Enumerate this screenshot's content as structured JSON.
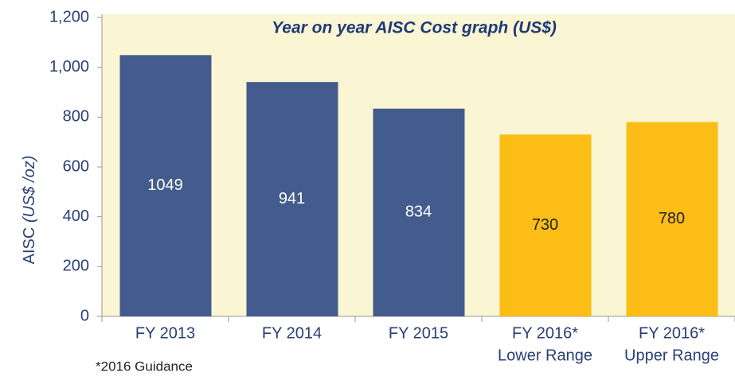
{
  "chart_data": {
    "type": "bar",
    "title": "Year on year AISC Cost graph (US$)",
    "y_label": {
      "text": "AISC",
      "unit": "(US$ /oz)"
    },
    "categories": [
      [
        "FY 2013"
      ],
      [
        "FY 2014"
      ],
      [
        "FY 2015"
      ],
      [
        "FY 2016*",
        "Lower Range"
      ],
      [
        "FY 2016*",
        "Upper Range"
      ]
    ],
    "values": [
      1049,
      941,
      834,
      730,
      780
    ],
    "colors": [
      "#445b8d",
      "#445b8d",
      "#445b8d",
      "#fbbd16",
      "#fbbd16"
    ],
    "label_colors": [
      "#ffffff",
      "#ffffff",
      "#ffffff",
      "#222222",
      "#222222"
    ],
    "ylim": [
      0,
      1200
    ],
    "yticks": [
      0,
      200,
      400,
      600,
      800,
      {
        "value": 1000,
        "label": "1,000"
      },
      {
        "value": 1200,
        "label": "1,200"
      }
    ],
    "footnote": "*2016 Guidance"
  }
}
